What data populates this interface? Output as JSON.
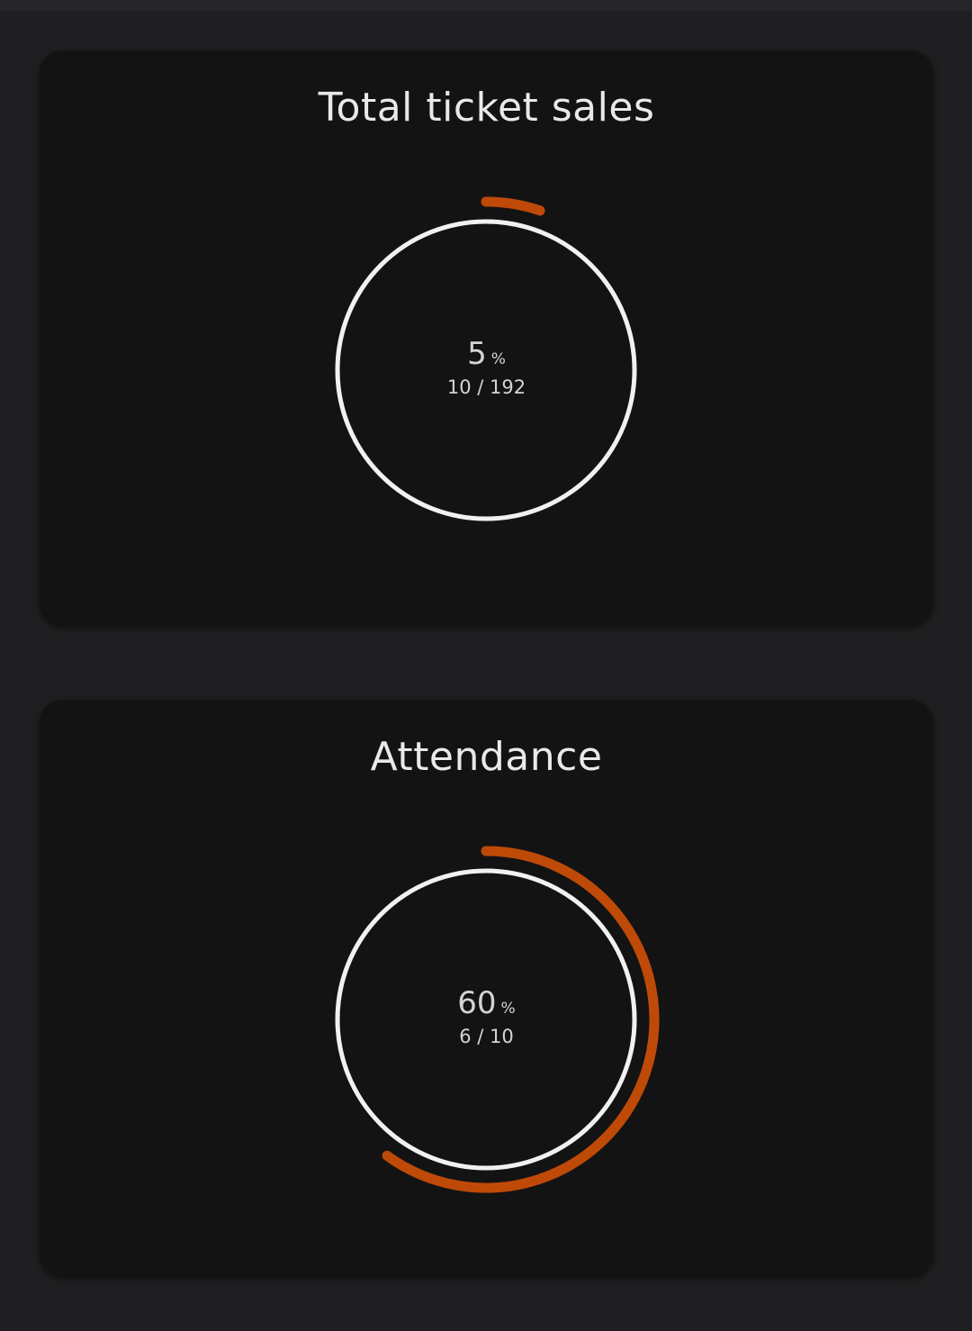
{
  "colors": {
    "page_bg": "#1f1f21",
    "card_bg": "#141314",
    "ring": "#f2f1ef",
    "progress": "#bf4a08",
    "text": "#e9e9ea"
  },
  "widgets": [
    {
      "title": "Total ticket sales",
      "percent": "5",
      "percent_unit": "%",
      "count": "10 / 192",
      "progress_fraction": 0.052
    },
    {
      "title": "Attendance",
      "percent": "60",
      "percent_unit": "%",
      "count": "6 / 10",
      "progress_fraction": 0.6
    }
  ]
}
